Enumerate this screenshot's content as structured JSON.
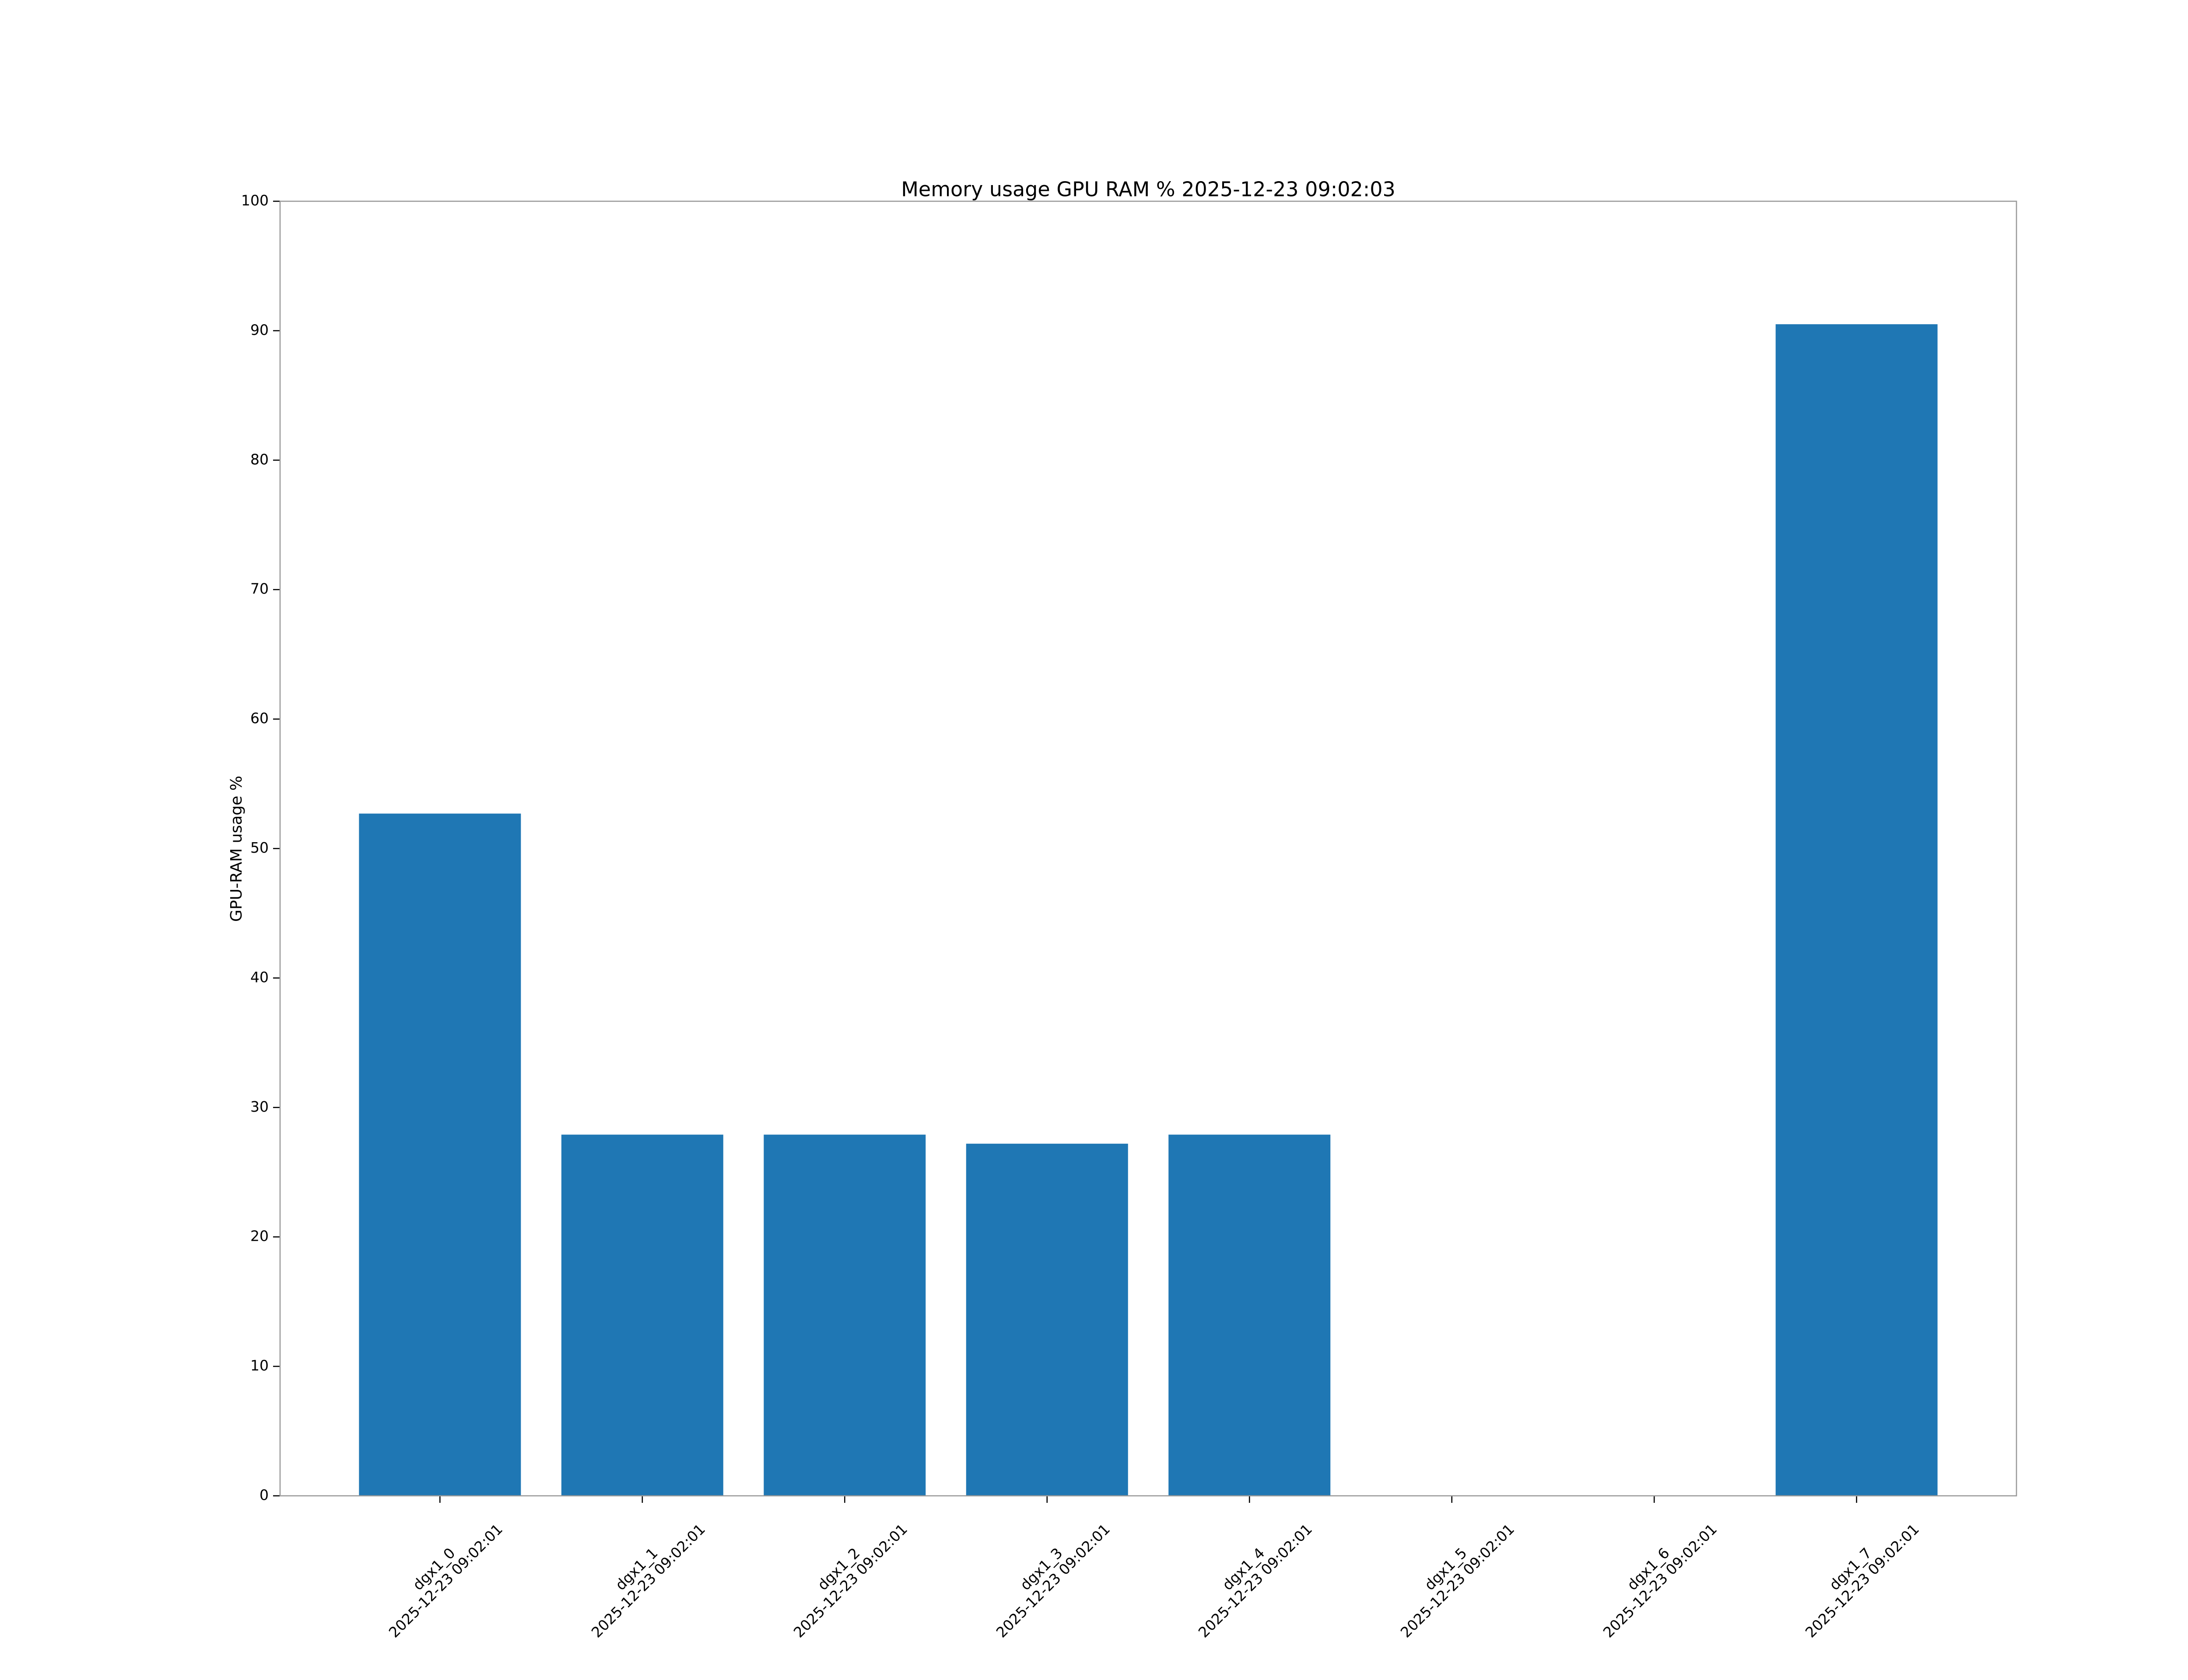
{
  "chart_data": {
    "type": "bar",
    "title": "Memory usage GPU RAM % 2025-12-23 09:02:03",
    "y_label": "GPU-RAM usage %",
    "categories": [
      "dgx1_0\n2025-12-23 09:02:01",
      "dgx1_1\n2025-12-23 09:02:01",
      "dgx1_2\n2025-12-23 09:02:01",
      "dgx1_3\n2025-12-23 09:02:01",
      "dgx1_4\n2025-12-23 09:02:01",
      "dgx1_5\n2025-12-23 09:02:01",
      "dgx1_6\n2025-12-23 09:02:01",
      "dgx1_7\n2025-12-23 09:02:01"
    ],
    "values": [
      52.7,
      27.9,
      27.9,
      27.2,
      27.9,
      0,
      0,
      90.5
    ],
    "color": "#1f77b4",
    "ylim": [
      0,
      100
    ],
    "yticks": [
      0,
      10,
      20,
      30,
      40,
      50,
      60,
      70,
      80,
      90,
      100
    ],
    "grid": false
  }
}
